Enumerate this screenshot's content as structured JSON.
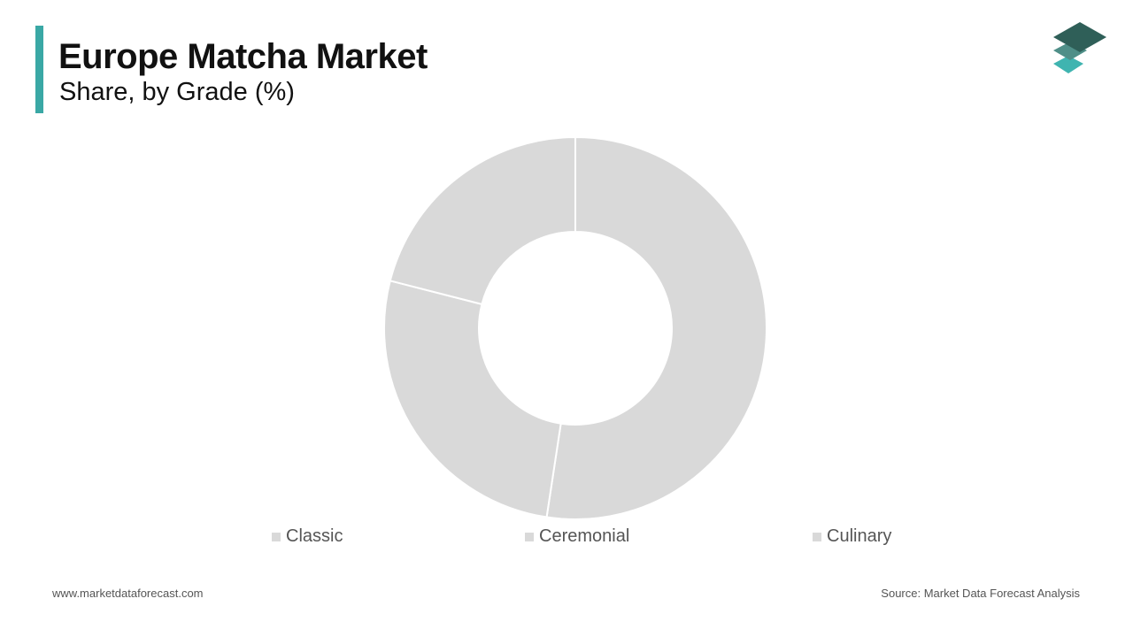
{
  "header": {
    "title": "Europe Matcha Market",
    "subtitle": "Share, by Grade (%)"
  },
  "colors": {
    "accent": "#3aa8a5",
    "slice": "#d9d9d9",
    "logo": [
      "#2f5f58",
      "#4f8f88",
      "#3fb4b0"
    ]
  },
  "chart_data": {
    "type": "pie",
    "variant": "donut",
    "categories": [
      "Classic",
      "Ceremonial",
      "Culinary"
    ],
    "values": [
      52.4,
      26.6,
      21.0
    ],
    "data_labels": false,
    "legend": "bottom"
  },
  "footer": {
    "website": "www.marketdataforecast.com",
    "source": "Source: Market Data Forecast Analysis"
  }
}
